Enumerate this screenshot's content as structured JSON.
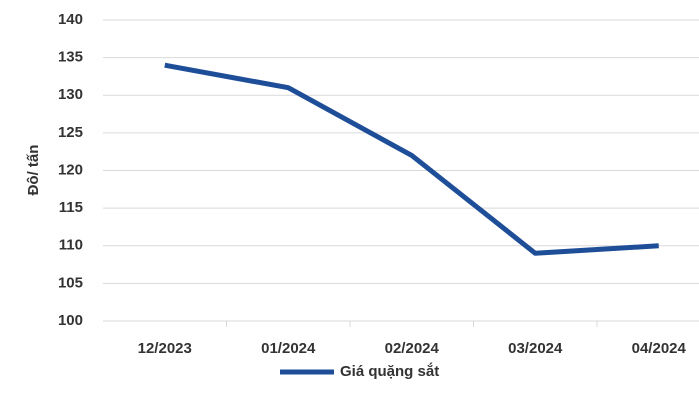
{
  "chart_data": {
    "type": "line",
    "y_label": "Đô/ tấn",
    "categories": [
      "12/2023",
      "01/2024",
      "02/2024",
      "03/2024",
      "04/2024"
    ],
    "series": [
      {
        "name": "Giá quặng sắt",
        "color": "#1f4e99",
        "values": [
          134,
          131,
          122,
          109,
          110
        ]
      }
    ],
    "ylim": [
      100,
      140
    ],
    "yticks": [
      100,
      105,
      110,
      115,
      120,
      125,
      130,
      135,
      140
    ],
    "grid": true,
    "legend": "bottom"
  }
}
